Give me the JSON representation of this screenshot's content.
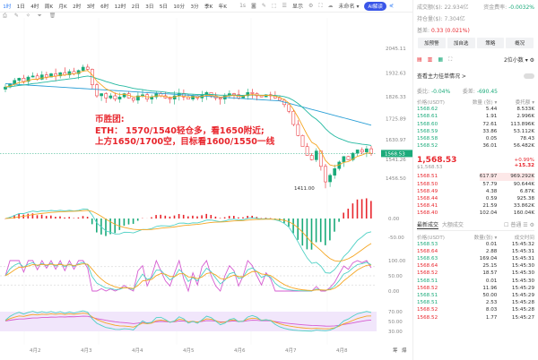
{
  "toolbar": {
    "timeframes": [
      "1时",
      "1日",
      "4时",
      "周K",
      "月K",
      "2时",
      "3时",
      "6时",
      "12时",
      "2日",
      "3日",
      "5日",
      "10分",
      "3分",
      "季K",
      "年K"
    ],
    "active": "1时",
    "interval_1s": "1s",
    "display": "显示",
    "unnamed": "未命名",
    "ai_button": "AI解读"
  },
  "annotation": {
    "lines": [
      "币胜团:",
      "ETH： 1570/1540轻仓多，看1650附近;",
      "上方1650/1700空，目标看1600/1550一线"
    ]
  },
  "chart_data": {
    "type": "candlestick",
    "price_axis_ticks": [
      "2045.11",
      "1932.63",
      "1826.33",
      "1725.89",
      "1630.97",
      "1541.26",
      "1456.50"
    ],
    "last_price_label": "1568.53",
    "low_label": "1411.00",
    "x_tick_labels": [
      "4月2",
      "4月3",
      "4月4",
      "4月5",
      "4月6",
      "4月7",
      "4月8"
    ],
    "closes": [
      1870,
      1885,
      1900,
      1910,
      1895,
      1915,
      1920,
      1905,
      1925,
      1915,
      1930,
      1920,
      1935,
      1925,
      1940,
      1930,
      1945,
      1960,
      1950,
      1880,
      1830,
      1840,
      1820,
      1830,
      1815,
      1825,
      1840,
      1820,
      1810,
      1830,
      1835,
      1815,
      1825,
      1840,
      1830,
      1820,
      1815,
      1830,
      1840,
      1825,
      1815,
      1830,
      1820,
      1835,
      1845,
      1830,
      1820,
      1815,
      1830,
      1840,
      1835,
      1820,
      1830,
      1845,
      1840,
      1830,
      1825,
      1835,
      1830,
      1820,
      1810,
      1790,
      1760,
      1700,
      1650,
      1600,
      1560,
      1540,
      1580,
      1510,
      1440,
      1470,
      1500,
      1530,
      1555,
      1540,
      1570,
      1585,
      1575,
      1590,
      1568.53
    ],
    "macd_ticks": [
      "0.00",
      "-50.00"
    ],
    "kdj_ticks": [
      "100.00",
      "50.00",
      "0.00"
    ],
    "rsi_ticks": [
      "70.00",
      "50.00",
      "30.00"
    ],
    "axis_corner": [
      "筹",
      "爆"
    ]
  },
  "info": {
    "volume_label": "成交额($):",
    "volume": "22.934亿",
    "funding_label": "资金费率:",
    "funding": "-0.0032%",
    "oi_label": "持仓量($):",
    "oi": "7.304亿",
    "basis_label": "基差:",
    "basis": "0.33 (0.021%)"
  },
  "buttons": [
    "加预警",
    "加自选",
    "策略",
    "概况"
  ],
  "decimals": "2位小数",
  "whale": {
    "label": "查看主力挂单情况 >",
    "ratio_label": "委比:",
    "ratio": "-0.04%",
    "diff_label": "委差:",
    "diff": "-690.45"
  },
  "orderbook": {
    "headers": [
      "价格(USDT)",
      "数量 (张) ▾",
      "委托额 ▾"
    ],
    "asks": [
      [
        "1568.62",
        "5.44",
        "8.533K"
      ],
      [
        "1568.61",
        "1.91",
        "2.996K"
      ],
      [
        "1568.60",
        "72.61",
        "113.896K"
      ],
      [
        "1568.59",
        "33.86",
        "53.112K"
      ],
      [
        "1568.58",
        "0.05",
        "78.43"
      ],
      [
        "1568.52",
        "36.01",
        "56.482K"
      ]
    ],
    "last": "1,568.53",
    "last_usd": "$1,568.53",
    "change_pct": "+0.99%",
    "change": "+15.32",
    "bids": [
      [
        "1568.51",
        "617.97",
        "969.292K"
      ],
      [
        "1568.50",
        "57.79",
        "90.644K"
      ],
      [
        "1568.49",
        "4.38",
        "6.87K"
      ],
      [
        "1568.44",
        "0.59",
        "925.38"
      ],
      [
        "1568.41",
        "21.59",
        "33.862K"
      ],
      [
        "1568.40",
        "102.04",
        "160.04K"
      ]
    ]
  },
  "trades": {
    "tabs": [
      "最新成交",
      "大额成交"
    ],
    "filter": "普通",
    "headers": [
      "价格(USDT)",
      "数量(张) ▾",
      "成交时间"
    ],
    "rows": [
      [
        "1568.53",
        "0.01",
        "15:45:32",
        "g"
      ],
      [
        "1568.64",
        "2.88",
        "15:45:31",
        "r"
      ],
      [
        "1568.63",
        "169.04",
        "15:45:31",
        "g"
      ],
      [
        "1568.64",
        "25.15",
        "15:45:30",
        "r"
      ],
      [
        "1568.52",
        "18.57",
        "15:45:30",
        "r"
      ],
      [
        "1568.51",
        "0.01",
        "15:45:30",
        "g"
      ],
      [
        "1568.52",
        "11.96",
        "15:45:29",
        "r"
      ],
      [
        "1568.51",
        "50.00",
        "15:45:29",
        "g"
      ],
      [
        "1568.51",
        "2.53",
        "15:45:28",
        "g"
      ],
      [
        "1568.52",
        "8.03",
        "15:45:28",
        "r"
      ],
      [
        "1568.52",
        "1.77",
        "15:45:27",
        "r"
      ]
    ]
  },
  "colors": {
    "up": "#1aaa7a",
    "down": "#e8262d",
    "accent": "#2f7cf6",
    "ma_short": "#f5a623",
    "ma_mid": "#22b8a0",
    "ma_long": "#2a9fd6"
  }
}
